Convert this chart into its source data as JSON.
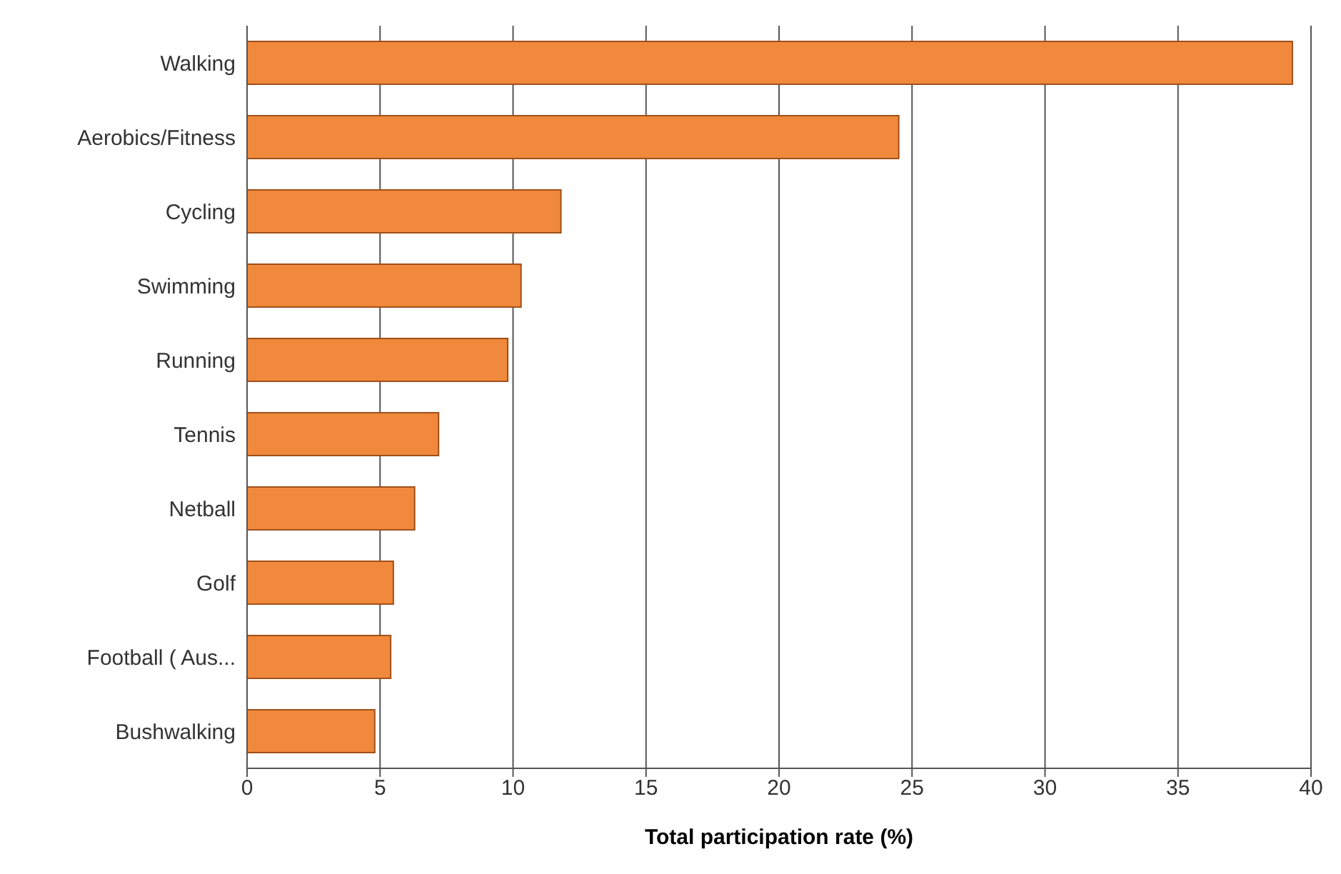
{
  "chart_data": {
    "type": "bar",
    "orientation": "horizontal",
    "xlabel": "Total participation rate (%)",
    "categories": [
      "Walking",
      "Aerobics/Fitness",
      "Cycling",
      "Swimming",
      "Running",
      "Tennis",
      "Netball",
      "Golf",
      "Football ( Aus...",
      "Bushwalking"
    ],
    "values": [
      39.3,
      24.5,
      11.8,
      10.3,
      9.8,
      7.2,
      6.3,
      5.5,
      5.4,
      4.8
    ],
    "color": "#f0893c",
    "xlim": [
      0,
      40
    ],
    "xticks": [
      0,
      5,
      10,
      15,
      20,
      25,
      30,
      35,
      40
    ],
    "grid": "x"
  }
}
